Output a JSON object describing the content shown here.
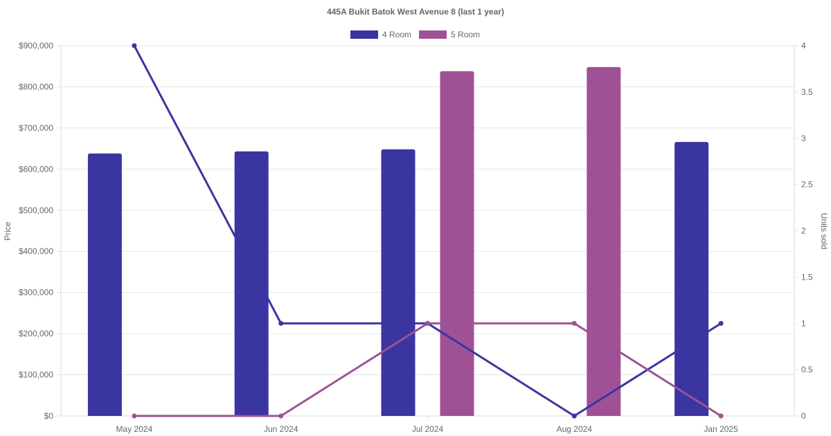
{
  "chart_data": {
    "type": "bar",
    "title": "445A Bukit Batok West Avenue 8 (last 1 year)",
    "categories": [
      "May 2024",
      "Jun 2024",
      "Jul 2024",
      "Aug 2024",
      "Jan 2025"
    ],
    "ylabel_left": "Price",
    "ylabel_right": "Units sold",
    "ylim_left": [
      0,
      900000
    ],
    "ylim_right": [
      0,
      4
    ],
    "yticks_left": [
      "$0",
      "$100,000",
      "$200,000",
      "$300,000",
      "$400,000",
      "$500,000",
      "$600,000",
      "$700,000",
      "$800,000",
      "$900,000"
    ],
    "yticks_right": [
      "0",
      "0.5",
      "1",
      "1.5",
      "2",
      "2.5",
      "3",
      "3.5",
      "4"
    ],
    "grid": true,
    "legend_position": "top",
    "series": [
      {
        "name": "4 Room",
        "color": "#3a35a0",
        "bar_values": [
          638000,
          643000,
          648000,
          null,
          666000
        ],
        "line_values": [
          4,
          1,
          1,
          0,
          1
        ]
      },
      {
        "name": "5 Room",
        "color": "#9e5295",
        "bar_values": [
          null,
          null,
          838000,
          848000,
          null
        ],
        "line_values": [
          0,
          0,
          1,
          1,
          0
        ]
      }
    ]
  }
}
